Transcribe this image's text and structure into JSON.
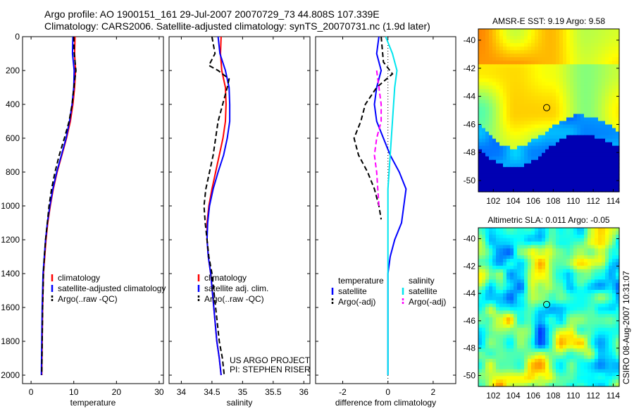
{
  "header": {
    "line1": "Argo profile: AO 1900151_161 29-Jul-2007 20070729_73 44.808S 107.339E",
    "line2": "Climatology: CARS2006. Satellite-adjusted climatology: synTS_20070731.nc (1.9d later)"
  },
  "side_stamp": "CSIRO 08-Aug-2007 10:31:07",
  "colors": {
    "climatology": "#ff0000",
    "satellite": "#0000ff",
    "argo": "#000000",
    "temperature_satellite_diff": "#00e5ee",
    "argo_salinity_diff": "#ff00ff"
  },
  "chart_data": [
    {
      "type": "line",
      "panel": "temperature",
      "xlabel": "temperature",
      "ylabel": "",
      "xlim": [
        -2,
        31
      ],
      "ylim": [
        2050,
        0
      ],
      "y_reversed": true,
      "xticks": [
        0,
        10,
        20,
        30
      ],
      "yticks": [
        0,
        200,
        400,
        600,
        800,
        1000,
        1200,
        1400,
        1600,
        1800,
        2000
      ],
      "legend": [
        "climatology",
        "satellite-adjusted climatology",
        "Argo(..raw -QC)"
      ],
      "legend_position": "bottom-right",
      "series": [
        {
          "name": "climatology",
          "style": "solid",
          "x": [
            10.3,
            10.2,
            10.4,
            10.2,
            9.8,
            9.2,
            8.3,
            7.2,
            6.1,
            5.2,
            4.5,
            3.9,
            3.5,
            3.2,
            2.9,
            2.7,
            2.6,
            2.5
          ],
          "y": [
            0,
            100,
            200,
            300,
            400,
            500,
            600,
            700,
            800,
            900,
            1000,
            1100,
            1200,
            1300,
            1400,
            1600,
            1800,
            2000
          ]
        },
        {
          "name": "satellite-adjusted climatology",
          "style": "solid",
          "x": [
            9.8,
            9.7,
            10.1,
            10.0,
            9.6,
            9.0,
            8.2,
            7.1,
            6.0,
            5.1,
            4.4,
            3.8,
            3.4,
            3.1,
            2.8,
            2.6,
            2.5,
            2.4
          ],
          "y": [
            0,
            100,
            200,
            300,
            400,
            500,
            600,
            700,
            800,
            900,
            1000,
            1100,
            1200,
            1300,
            1400,
            1600,
            1800,
            2000
          ]
        },
        {
          "name": "Argo(..raw -QC)",
          "style": "dashed",
          "x": [
            10.0,
            10.1,
            10.5,
            10.2,
            9.6,
            8.9,
            7.8,
            6.6,
            5.6,
            4.8,
            4.2,
            3.8,
            3.4,
            3.1,
            2.9,
            2.7,
            2.6,
            2.5
          ],
          "y": [
            0,
            100,
            200,
            260,
            400,
            500,
            600,
            700,
            800,
            900,
            1000,
            1100,
            1200,
            1300,
            1400,
            1600,
            1800,
            2000
          ]
        }
      ]
    },
    {
      "type": "line",
      "panel": "salinity",
      "xlabel": "salinity",
      "ylabel": "",
      "xlim": [
        33.8,
        36.1
      ],
      "ylim": [
        2050,
        0
      ],
      "y_reversed": true,
      "xticks": [
        34,
        34.5,
        35,
        35.5,
        36
      ],
      "yticks": [
        0,
        200,
        400,
        600,
        800,
        1000,
        1200,
        1400,
        1600,
        1800,
        2000
      ],
      "legend": [
        "climatology",
        "satellite adj. clim.",
        "Argo(..raw -QC)"
      ],
      "legend_position": "bottom-right",
      "annotation": [
        "US ARGO PROJECT",
        "PI: STEPHEN RISER"
      ],
      "series": [
        {
          "name": "climatology",
          "style": "solid",
          "x": [
            34.65,
            34.64,
            34.66,
            34.72,
            34.73,
            34.72,
            34.68,
            34.62,
            34.56,
            34.5,
            34.45,
            34.42,
            34.42,
            34.44,
            34.48,
            34.53,
            34.58,
            34.62,
            34.65
          ],
          "y": [
            0,
            100,
            200,
            300,
            400,
            500,
            600,
            700,
            800,
            900,
            1000,
            1100,
            1200,
            1300,
            1400,
            1600,
            1800,
            1900,
            2000
          ]
        },
        {
          "name": "satellite adj. clim.",
          "style": "solid",
          "x": [
            34.6,
            34.63,
            34.72,
            34.78,
            34.79,
            34.79,
            34.75,
            34.69,
            34.6,
            34.52,
            34.46,
            34.43,
            34.42,
            34.44,
            34.48,
            34.53,
            34.58,
            34.62,
            34.65
          ],
          "y": [
            0,
            100,
            200,
            300,
            400,
            500,
            600,
            700,
            800,
            900,
            1000,
            1100,
            1200,
            1300,
            1400,
            1600,
            1800,
            1900,
            2000
          ]
        },
        {
          "name": "Argo(..raw -QC)",
          "style": "dashed",
          "x": [
            34.5,
            34.55,
            34.45,
            34.6,
            34.78,
            34.75,
            34.6,
            34.52,
            34.46,
            34.4,
            34.37,
            34.39,
            34.42,
            34.45,
            34.5,
            34.56,
            34.62,
            34.67,
            34.7
          ],
          "y": [
            0,
            100,
            170,
            200,
            250,
            300,
            500,
            700,
            800,
            900,
            1000,
            1100,
            1200,
            1300,
            1400,
            1600,
            1800,
            1900,
            2000
          ]
        }
      ]
    },
    {
      "type": "line",
      "panel": "difference",
      "xlabel": "difference from climatology",
      "ylabel": "",
      "xlim": [
        -3.2,
        3.0
      ],
      "ylim": [
        2050,
        0
      ],
      "y_reversed": true,
      "xticks": [
        -2,
        0,
        2
      ],
      "yticks": [
        0,
        200,
        400,
        600,
        800,
        1000,
        1200,
        1400,
        1600,
        1800,
        2000
      ],
      "legend_position": "bottom",
      "legend_groups": [
        {
          "heading": "temperature",
          "items": [
            "satellite",
            "Argo(-adj)"
          ]
        },
        {
          "heading": "salinity",
          "items": [
            "satellite",
            "Argo(-adj)"
          ]
        }
      ],
      "series": [
        {
          "name": "temperature satellite",
          "style": "solid",
          "x": [
            -0.4,
            -0.5,
            -0.3,
            -0.5,
            -0.6,
            -0.5,
            -0.2,
            0.1,
            0.5,
            0.8,
            0.7,
            0.6,
            0.3,
            0.1,
            0.0,
            0.0,
            0.0
          ],
          "y": [
            0,
            100,
            200,
            300,
            400,
            500,
            600,
            700,
            800,
            900,
            1000,
            1100,
            1200,
            1300,
            1400,
            1600,
            2000
          ]
        },
        {
          "name": "temperature Argo(-adj)",
          "style": "dashed",
          "x": [
            -0.3,
            -0.2,
            0.2,
            -0.5,
            -1.0,
            -1.2,
            -1.5,
            -1.3,
            -0.9,
            -0.6,
            -0.4,
            -0.3
          ],
          "y": [
            0,
            150,
            220,
            300,
            400,
            500,
            600,
            700,
            800,
            900,
            1000,
            1080
          ]
        },
        {
          "name": "salinity satellite",
          "style": "solid",
          "x": [
            -0.1,
            0.2,
            0.4,
            0.3,
            0.25,
            0.2,
            0.15,
            0.1,
            0.05,
            0.0,
            0.0,
            0.0,
            0.0
          ],
          "y": [
            0,
            100,
            200,
            300,
            400,
            500,
            600,
            700,
            800,
            900,
            1200,
            1600,
            2000
          ]
        },
        {
          "name": "salinity Argo(-adj)",
          "style": "dashed",
          "x": [
            -0.5,
            -0.4,
            -0.3,
            -0.3,
            -0.5,
            -0.6,
            -0.5,
            -0.4
          ],
          "y": [
            200,
            300,
            400,
            500,
            600,
            700,
            800,
            1000
          ]
        }
      ]
    },
    {
      "type": "heatmap",
      "panel": "sst-map",
      "title": "AMSR-E SST: 9.19 Argo: 9.58",
      "xlim": [
        100.5,
        114.6
      ],
      "ylim": [
        -50.8,
        -39.2
      ],
      "xticks": [
        102,
        104,
        106,
        108,
        110,
        112,
        114
      ],
      "yticks": [
        -40,
        -42,
        -44,
        -46,
        -48,
        -50
      ],
      "marker": {
        "lon": 107.339,
        "lat": -44.808
      },
      "colormap": "jet"
    },
    {
      "type": "heatmap",
      "panel": "sla-map",
      "title": "Altimetric SLA: 0.011 Argo: -0.05",
      "xlim": [
        100.5,
        114.6
      ],
      "ylim": [
        -50.8,
        -39.2
      ],
      "xticks": [
        102,
        104,
        106,
        108,
        110,
        112,
        114
      ],
      "yticks": [
        -40,
        -42,
        -44,
        -46,
        -48,
        -50
      ],
      "marker": {
        "lon": 107.339,
        "lat": -44.808
      },
      "colormap": "jet"
    }
  ]
}
